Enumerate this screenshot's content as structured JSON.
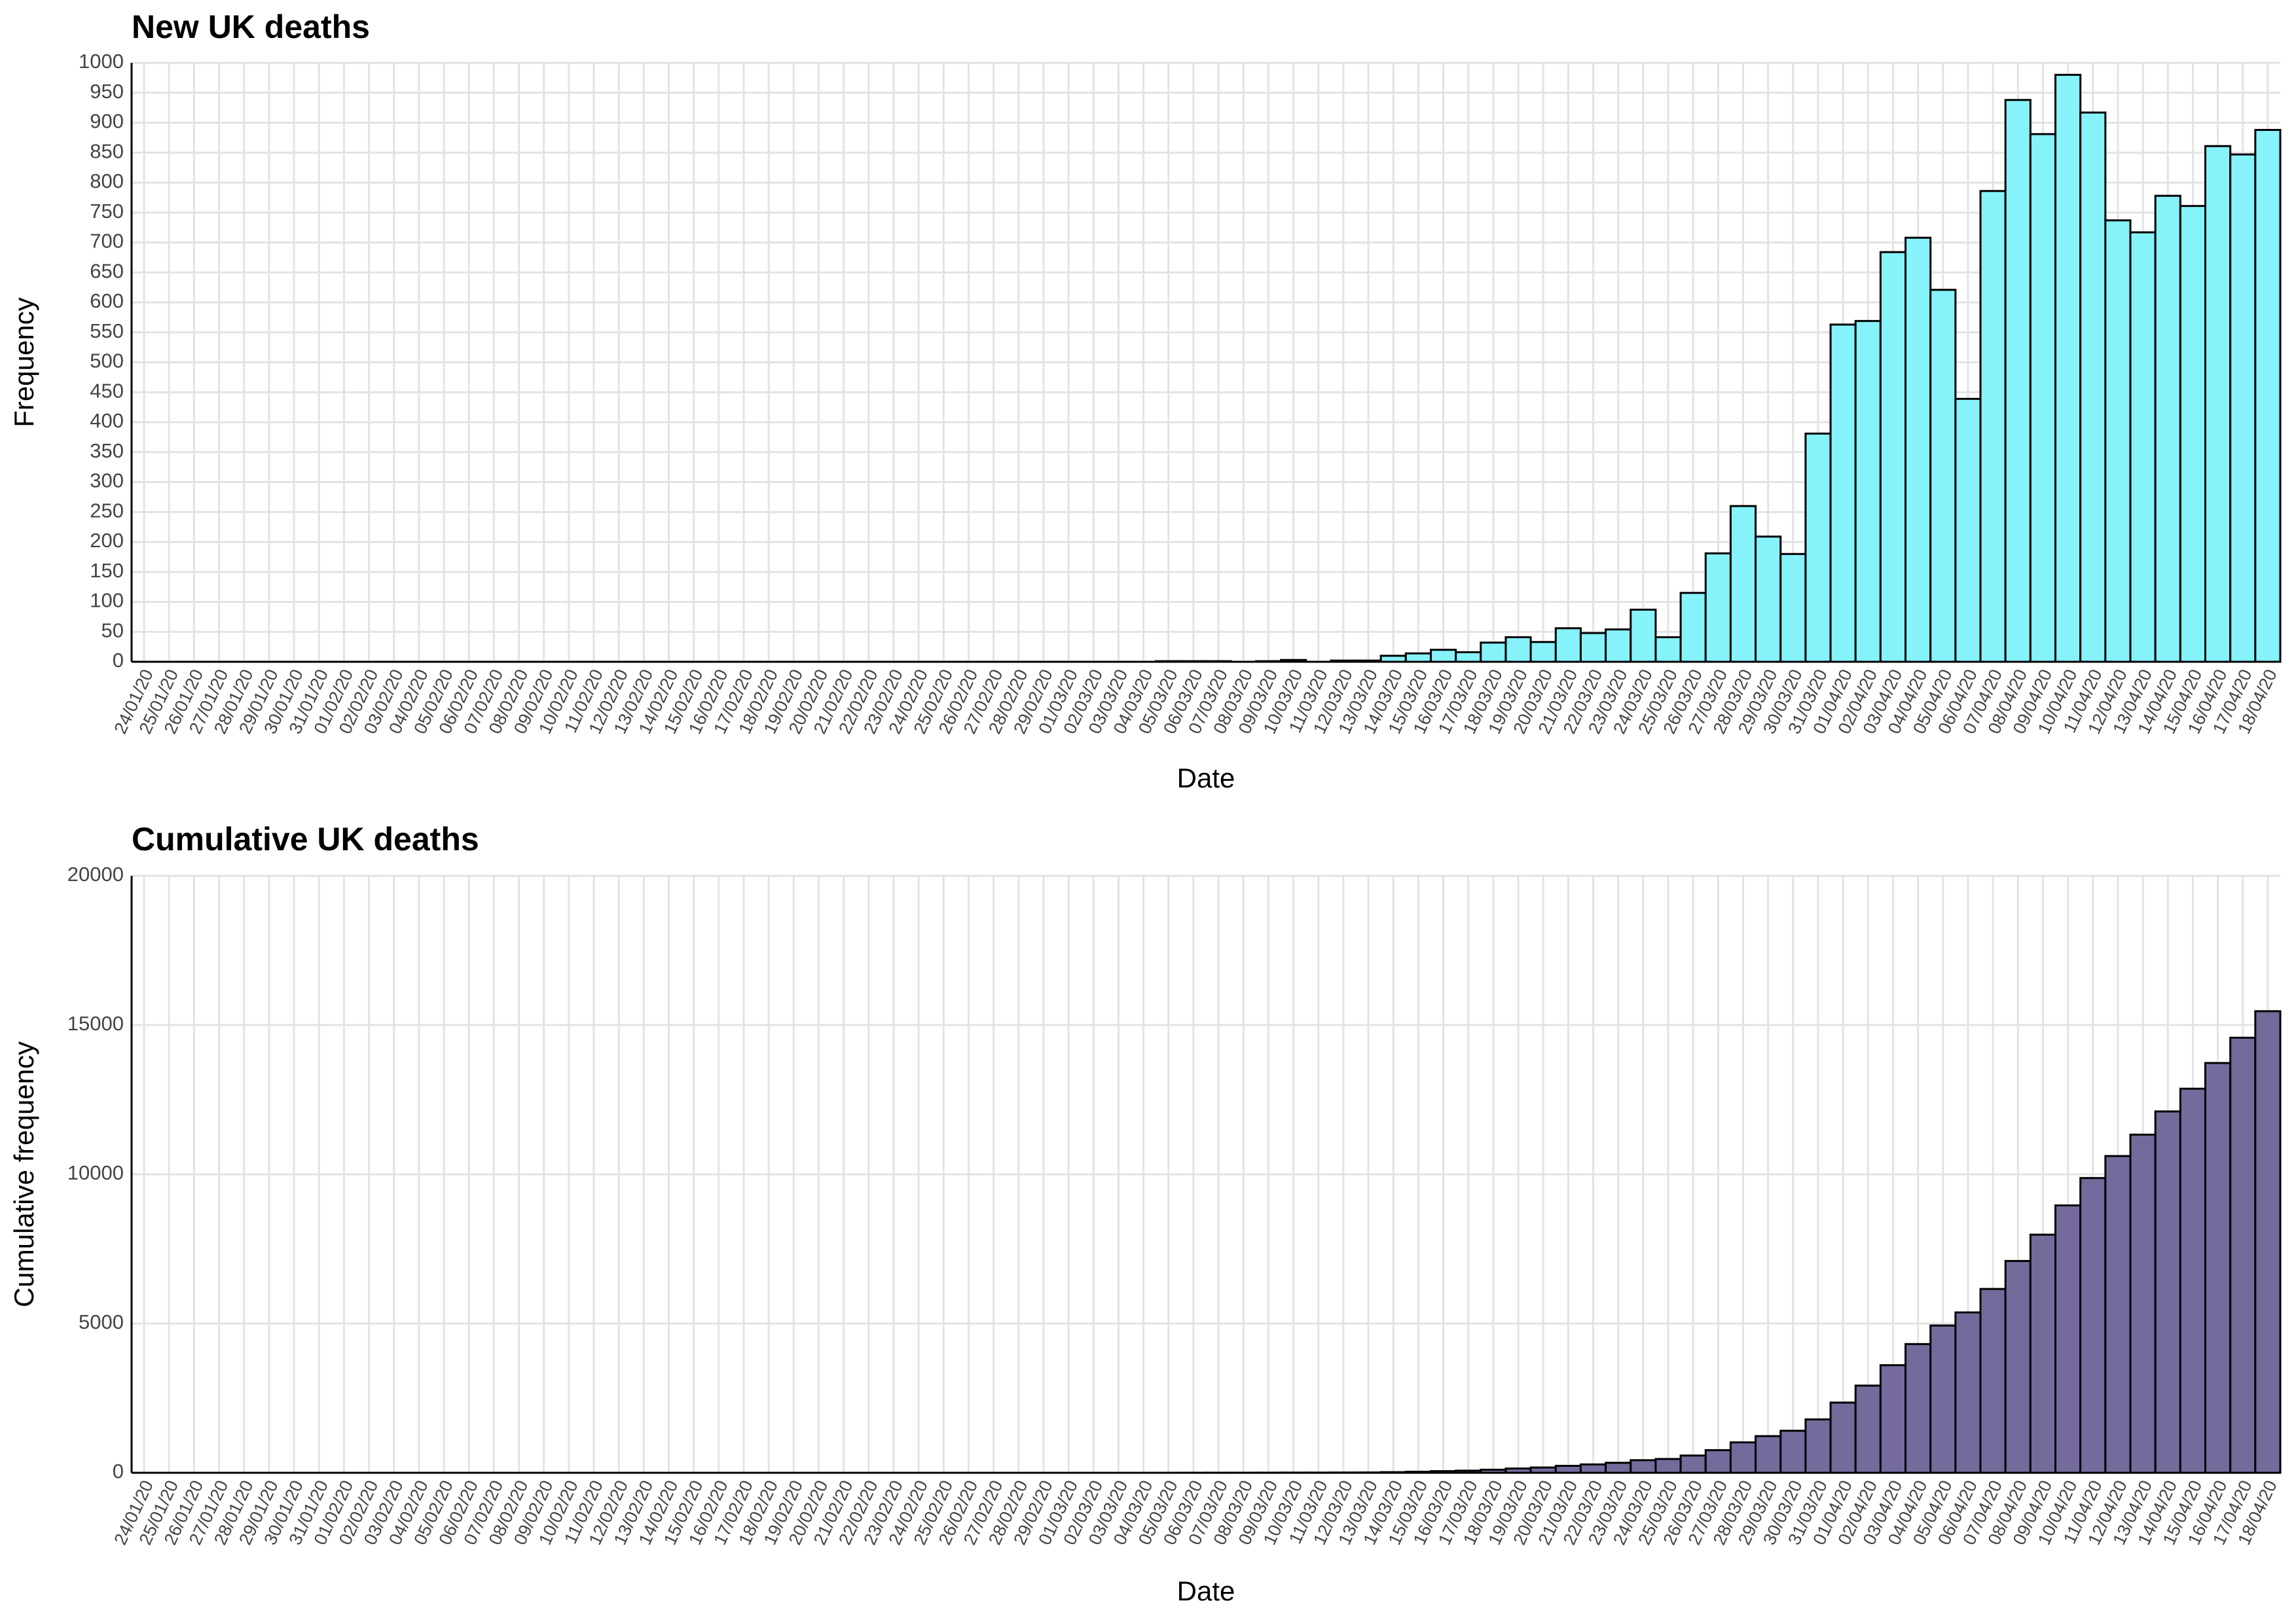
{
  "chart_data": [
    {
      "type": "bar",
      "title": "New UK deaths",
      "x_label": "Date",
      "y_label": "Frequency",
      "color": "#86f2fa",
      "grid": true,
      "categories": [
        "24/01/20",
        "25/01/20",
        "26/01/20",
        "27/01/20",
        "28/01/20",
        "29/01/20",
        "30/01/20",
        "31/01/20",
        "01/02/20",
        "02/02/20",
        "03/02/20",
        "04/02/20",
        "05/02/20",
        "06/02/20",
        "07/02/20",
        "08/02/20",
        "09/02/20",
        "10/02/20",
        "11/02/20",
        "12/02/20",
        "13/02/20",
        "14/02/20",
        "15/02/20",
        "16/02/20",
        "17/02/20",
        "18/02/20",
        "19/02/20",
        "20/02/20",
        "21/02/20",
        "22/02/20",
        "23/02/20",
        "24/02/20",
        "25/02/20",
        "26/02/20",
        "27/02/20",
        "28/02/20",
        "29/02/20",
        "01/03/20",
        "02/03/20",
        "03/03/20",
        "04/03/20",
        "05/03/20",
        "06/03/20",
        "07/03/20",
        "08/03/20",
        "09/03/20",
        "10/03/20",
        "11/03/20",
        "12/03/20",
        "13/03/20",
        "14/03/20",
        "15/03/20",
        "16/03/20",
        "17/03/20",
        "18/03/20",
        "19/03/20",
        "20/03/20",
        "21/03/20",
        "22/03/20",
        "23/03/20",
        "24/03/20",
        "25/03/20",
        "26/03/20",
        "27/03/20",
        "28/03/20",
        "29/03/20",
        "30/03/20",
        "31/03/20",
        "01/04/20",
        "02/04/20",
        "03/04/20",
        "04/04/20",
        "05/04/20",
        "06/04/20",
        "07/04/20",
        "08/04/20",
        "09/04/20",
        "10/04/20",
        "11/04/20",
        "12/04/20",
        "13/04/20",
        "14/04/20",
        "15/04/20",
        "16/04/20",
        "17/04/20",
        "18/04/20"
      ],
      "values": [
        0,
        0,
        0,
        0,
        0,
        0,
        0,
        0,
        0,
        0,
        0,
        0,
        0,
        0,
        0,
        0,
        0,
        0,
        0,
        0,
        0,
        0,
        0,
        0,
        0,
        0,
        0,
        0,
        0,
        0,
        0,
        0,
        0,
        0,
        0,
        0,
        0,
        0,
        0,
        0,
        0,
        1,
        1,
        1,
        0,
        1,
        3,
        0,
        2,
        2,
        10,
        14,
        20,
        16,
        32,
        41,
        33,
        56,
        48,
        54,
        87,
        41,
        115,
        181,
        260,
        209,
        180,
        381,
        563,
        569,
        684,
        708,
        621,
        439,
        786,
        938,
        881,
        980,
        917,
        737,
        717,
        778,
        761,
        861,
        847,
        888
      ],
      "ylim": [
        0,
        1000
      ],
      "yticks": [
        0,
        50,
        100,
        150,
        200,
        250,
        300,
        350,
        400,
        450,
        500,
        550,
        600,
        650,
        700,
        750,
        800,
        850,
        900,
        950,
        1000
      ]
    },
    {
      "type": "bar",
      "title": "Cumulative UK deaths",
      "x_label": "Date",
      "y_label": "Cumulative frequency",
      "color": "#756a9c",
      "grid": true,
      "categories": [
        "24/01/20",
        "25/01/20",
        "26/01/20",
        "27/01/20",
        "28/01/20",
        "29/01/20",
        "30/01/20",
        "31/01/20",
        "01/02/20",
        "02/02/20",
        "03/02/20",
        "04/02/20",
        "05/02/20",
        "06/02/20",
        "07/02/20",
        "08/02/20",
        "09/02/20",
        "10/02/20",
        "11/02/20",
        "12/02/20",
        "13/02/20",
        "14/02/20",
        "15/02/20",
        "16/02/20",
        "17/02/20",
        "18/02/20",
        "19/02/20",
        "20/02/20",
        "21/02/20",
        "22/02/20",
        "23/02/20",
        "24/02/20",
        "25/02/20",
        "26/02/20",
        "27/02/20",
        "28/02/20",
        "29/02/20",
        "01/03/20",
        "02/03/20",
        "03/03/20",
        "04/03/20",
        "05/03/20",
        "06/03/20",
        "07/03/20",
        "08/03/20",
        "09/03/20",
        "10/03/20",
        "11/03/20",
        "12/03/20",
        "13/03/20",
        "14/03/20",
        "15/03/20",
        "16/03/20",
        "17/03/20",
        "18/03/20",
        "19/03/20",
        "20/03/20",
        "21/03/20",
        "22/03/20",
        "23/03/20",
        "24/03/20",
        "25/03/20",
        "26/03/20",
        "27/03/20",
        "28/03/20",
        "29/03/20",
        "30/03/20",
        "31/03/20",
        "01/04/20",
        "02/04/20",
        "03/04/20",
        "04/04/20",
        "05/04/20",
        "06/04/20",
        "07/04/20",
        "08/04/20",
        "09/04/20",
        "10/04/20",
        "11/04/20",
        "12/04/20",
        "13/04/20",
        "14/04/20",
        "15/04/20",
        "16/04/20",
        "17/04/20",
        "18/04/20"
      ],
      "values": [
        0,
        0,
        0,
        0,
        0,
        0,
        0,
        0,
        0,
        0,
        0,
        0,
        0,
        0,
        0,
        0,
        0,
        0,
        0,
        0,
        0,
        0,
        0,
        0,
        0,
        0,
        0,
        0,
        0,
        0,
        0,
        0,
        0,
        0,
        0,
        0,
        0,
        0,
        0,
        0,
        0,
        1,
        2,
        3,
        3,
        4,
        7,
        7,
        9,
        11,
        21,
        35,
        55,
        71,
        103,
        144,
        177,
        233,
        281,
        335,
        422,
        463,
        578,
        759,
        1019,
        1228,
        1408,
        1789,
        2352,
        2921,
        3605,
        4313,
        4934,
        5373,
        6159,
        7097,
        7978,
        8958,
        9875,
        10612,
        11329,
        12107,
        12868,
        13729,
        14576,
        15464
      ],
      "ylim": [
        0,
        20000
      ],
      "yticks": [
        0,
        5000,
        10000,
        15000,
        20000
      ]
    }
  ]
}
